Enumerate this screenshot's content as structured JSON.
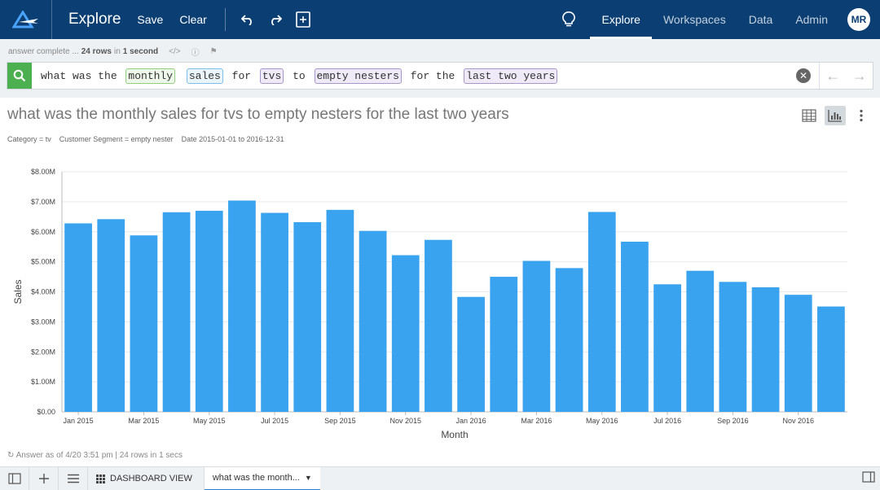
{
  "header": {
    "page_name": "Explore",
    "save_label": "Save",
    "clear_label": "Clear",
    "nav": [
      "Explore",
      "Workspaces",
      "Data",
      "Admin"
    ],
    "active_nav": "Explore",
    "avatar_initials": "MR"
  },
  "status": {
    "prefix": "answer complete ...",
    "rows": "24 rows",
    "mid": "in",
    "time": "1 second"
  },
  "search": {
    "query_tokens": [
      {
        "text": "what was the ",
        "style": "plain"
      },
      {
        "text": "monthly",
        "style": "green"
      },
      {
        "text": " ",
        "style": "plain"
      },
      {
        "text": "sales",
        "style": "blue"
      },
      {
        "text": " for ",
        "style": "plain"
      },
      {
        "text": "tvs",
        "style": "purple"
      },
      {
        "text": " to ",
        "style": "plain"
      },
      {
        "text": "empty nesters",
        "style": "purple"
      },
      {
        "text": " for the ",
        "style": "plain"
      },
      {
        "text": "last two years",
        "style": "purple"
      }
    ]
  },
  "answer": {
    "title": "what was the monthly sales for tvs to empty nesters for the last two years",
    "filters": [
      "Category = tv",
      "Customer Segment = empty nester",
      "Date 2015-01-01 to 2016-12-31"
    ],
    "footer": "Answer as of 4/20 3:51 pm | 24 rows in 1 secs"
  },
  "chart_data": {
    "type": "bar",
    "xlabel": "Month",
    "ylabel": "Sales",
    "ylim": [
      0,
      8000000
    ],
    "yticks": [
      "$0.00",
      "$1.00M",
      "$2.00M",
      "$3.00M",
      "$4.00M",
      "$5.00M",
      "$6.00M",
      "$7.00M",
      "$8.00M"
    ],
    "categories": [
      "Jan 2015",
      "Feb 2015",
      "Mar 2015",
      "Apr 2015",
      "May 2015",
      "Jun 2015",
      "Jul 2015",
      "Aug 2015",
      "Sep 2015",
      "Oct 2015",
      "Nov 2015",
      "Dec 2015",
      "Jan 2016",
      "Feb 2016",
      "Mar 2016",
      "Apr 2016",
      "May 2016",
      "Jun 2016",
      "Jul 2016",
      "Aug 2016",
      "Sep 2016",
      "Oct 2016",
      "Nov 2016",
      "Dec 2016"
    ],
    "shown_tick_labels": [
      "Jan 2015",
      "Mar 2015",
      "May 2015",
      "Jul 2015",
      "Sep 2015",
      "Nov 2015",
      "Jan 2016",
      "Mar 2016",
      "May 2016",
      "Jul 2016",
      "Sep 2016",
      "Nov 2016"
    ],
    "values": [
      6280000,
      6420000,
      5880000,
      6650000,
      6700000,
      7040000,
      6630000,
      6320000,
      6730000,
      6030000,
      5220000,
      5730000,
      3830000,
      4500000,
      5030000,
      4790000,
      6660000,
      5670000,
      4250000,
      4700000,
      4330000,
      4150000,
      3900000,
      3510000
    ],
    "bar_color": "#39a3f0",
    "grid": true
  },
  "bottom": {
    "dashboard_view": "DASHBOARD VIEW",
    "answer_tab": "what was the month..."
  }
}
